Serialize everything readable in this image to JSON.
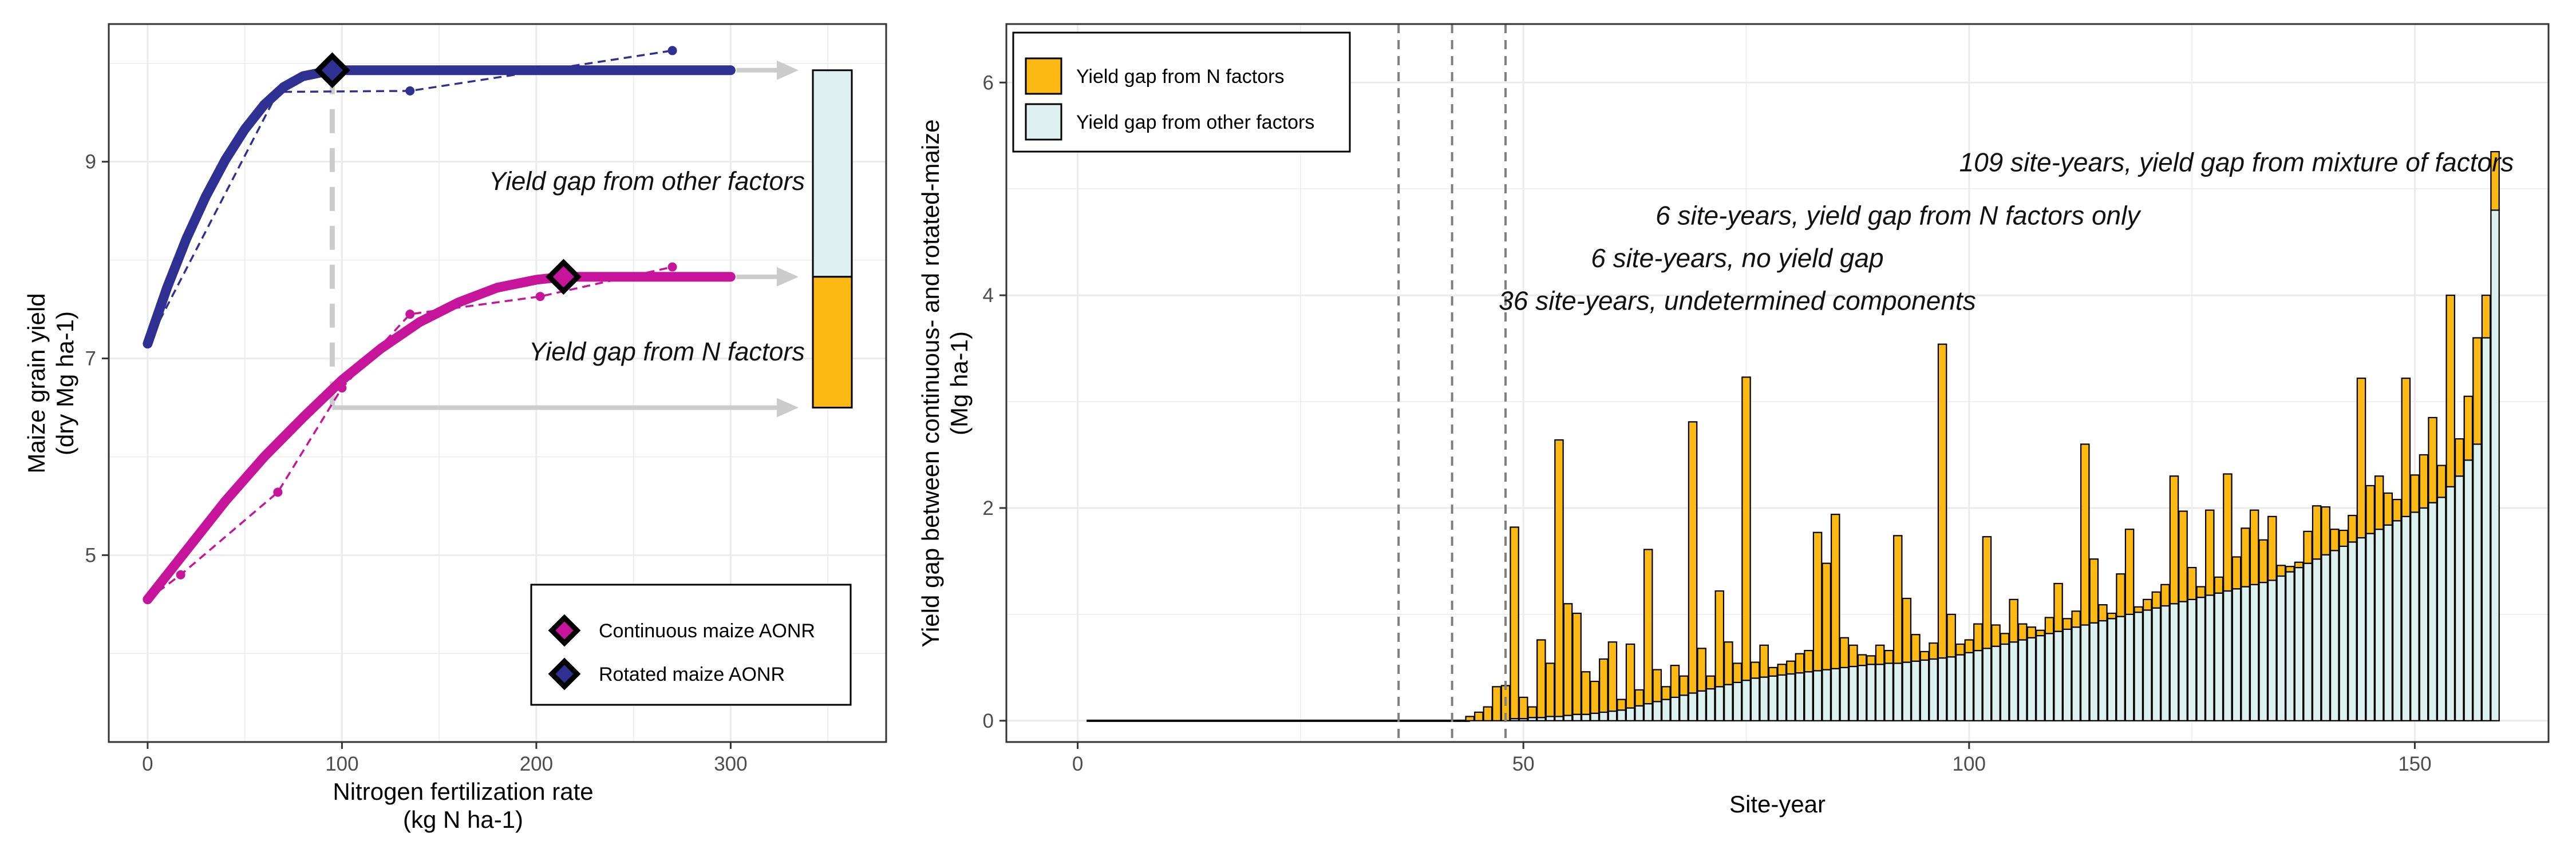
{
  "chart_data": [
    {
      "type": "line",
      "xlabel_lines": [
        "Nitrogen fertilization rate",
        "(kg N ha-1)"
      ],
      "ylabel_lines": [
        "Maize grain yield",
        "(dry Mg ha-1)"
      ],
      "xlim": [
        -20,
        380
      ],
      "ylim": [
        3.1,
        10.4
      ],
      "xticks": [
        0,
        100,
        200,
        300
      ],
      "yticks": [
        5,
        7,
        9
      ],
      "colors": {
        "rotated": "#2E3192",
        "continuous": "#C6159B",
        "n_factors": "#FDB913",
        "other_factors": "#DDF0F0",
        "arrow": "#CCCCCC"
      },
      "series": [
        {
          "key": "rotated",
          "fit": [
            [
              0,
              7.15
            ],
            [
              10,
              7.72
            ],
            [
              20,
              8.22
            ],
            [
              30,
              8.65
            ],
            [
              40,
              9.02
            ],
            [
              50,
              9.33
            ],
            [
              60,
              9.58
            ],
            [
              70,
              9.76
            ],
            [
              80,
              9.87
            ],
            [
              95,
              9.93
            ],
            [
              300,
              9.93
            ]
          ],
          "observed": [
            [
              0,
              7.15
            ],
            [
              67,
              9.71
            ],
            [
              135,
              9.72
            ],
            [
              270,
              10.13
            ]
          ]
        },
        {
          "key": "continuous",
          "fit": [
            [
              0,
              4.55
            ],
            [
              20,
              5.05
            ],
            [
              40,
              5.55
            ],
            [
              60,
              6.0
            ],
            [
              80,
              6.4
            ],
            [
              100,
              6.78
            ],
            [
              120,
              7.1
            ],
            [
              140,
              7.37
            ],
            [
              160,
              7.57
            ],
            [
              180,
              7.72
            ],
            [
              200,
              7.8
            ],
            [
              214,
              7.83
            ],
            [
              300,
              7.83
            ]
          ],
          "observed": [
            [
              0,
              4.55
            ],
            [
              17,
              4.8
            ],
            [
              67,
              5.64
            ],
            [
              100,
              6.7
            ],
            [
              135,
              7.45
            ],
            [
              202,
              7.63
            ],
            [
              270,
              7.93
            ]
          ]
        }
      ],
      "aonr": [
        {
          "key": "rotated",
          "x": 95,
          "y": 9.93
        },
        {
          "key": "continuous",
          "x": 214,
          "y": 7.83
        }
      ],
      "gap_bar": {
        "total_top": 9.93,
        "n_gap_top": 7.83,
        "bottom": 6.5
      },
      "annotations": {
        "other_factors": "Yield gap from other factors",
        "n_factors": "Yield gap from N factors"
      },
      "legend": {
        "position": "bottom-right",
        "items": [
          {
            "key": "continuous",
            "label": "Continuous maize AONR"
          },
          {
            "key": "rotated",
            "label": "Rotated maize AONR"
          }
        ]
      },
      "grid": true
    },
    {
      "type": "bar",
      "xlabel": "Site-year",
      "ylabel_lines": [
        "Yield gap between continuous- and rotated-maize",
        "(Mg ha-1)"
      ],
      "xlim": [
        -8,
        165
      ],
      "ylim": [
        -0.2,
        6.55
      ],
      "xticks": [
        0,
        50,
        100,
        150
      ],
      "yticks": [
        0,
        2,
        4,
        6
      ],
      "stacked": true,
      "series": [
        {
          "name": "Yield gap from N factors",
          "color": "#FDB913"
        },
        {
          "name": "Yield gap from other factors",
          "color": "#DDF0F0"
        }
      ],
      "bars_start_site": 44,
      "other_factors_values": [
        0,
        0,
        0,
        0,
        0,
        0.02,
        0.02,
        0.03,
        0.03,
        0.04,
        0.04,
        0.05,
        0.06,
        0.06,
        0.07,
        0.08,
        0.09,
        0.1,
        0.12,
        0.14,
        0.16,
        0.18,
        0.2,
        0.22,
        0.24,
        0.26,
        0.28,
        0.3,
        0.32,
        0.34,
        0.36,
        0.38,
        0.4,
        0.41,
        0.42,
        0.43,
        0.44,
        0.45,
        0.46,
        0.47,
        0.48,
        0.49,
        0.5,
        0.51,
        0.52,
        0.53,
        0.53,
        0.54,
        0.54,
        0.55,
        0.56,
        0.57,
        0.58,
        0.59,
        0.6,
        0.62,
        0.64,
        0.66,
        0.68,
        0.7,
        0.72,
        0.74,
        0.76,
        0.78,
        0.8,
        0.82,
        0.84,
        0.86,
        0.88,
        0.9,
        0.92,
        0.94,
        0.96,
        0.98,
        1.0,
        1.02,
        1.04,
        1.06,
        1.08,
        1.1,
        1.12,
        1.14,
        1.16,
        1.18,
        1.2,
        1.22,
        1.24,
        1.26,
        1.28,
        1.3,
        1.32,
        1.36,
        1.4,
        1.44,
        1.48,
        1.52,
        1.56,
        1.6,
        1.64,
        1.68,
        1.72,
        1.76,
        1.8,
        1.84,
        1.88,
        1.92,
        1.96,
        2.0,
        2.05,
        2.1,
        2.2,
        2.3,
        2.45,
        2.6,
        3.6,
        4.8
      ],
      "n_factors_values": [
        0.04,
        0.08,
        0.13,
        0.32,
        0.33,
        1.8,
        0.2,
        0.1,
        0.73,
        0.5,
        2.6,
        1.05,
        0.95,
        0.4,
        0.3,
        0.5,
        0.65,
        0.1,
        0.6,
        0.15,
        1.45,
        0.3,
        0.12,
        0.3,
        0.18,
        2.55,
        0.4,
        0.12,
        0.9,
        0.4,
        0.18,
        2.85,
        0.15,
        0.3,
        0.08,
        0.1,
        0.12,
        0.18,
        0.2,
        1.3,
        1.0,
        1.45,
        0.28,
        0.2,
        0.1,
        0.08,
        0.18,
        0.12,
        1.2,
        0.6,
        0.25,
        0.08,
        0.15,
        2.95,
        0.4,
        0.1,
        0.12,
        0.25,
        1.05,
        0.2,
        0.1,
        0.4,
        0.15,
        0.1,
        0.05,
        0.15,
        0.45,
        0.1,
        0.15,
        1.7,
        0.6,
        0.15,
        0.05,
        0.4,
        0.8,
        0.05,
        0.1,
        0.15,
        0.2,
        1.2,
        0.85,
        0.3,
        0.1,
        0.8,
        0.15,
        1.1,
        0.3,
        0.55,
        0.7,
        0.4,
        0.6,
        0.1,
        0.05,
        0.05,
        0.3,
        0.5,
        0.45,
        0.2,
        0.15,
        0.25,
        1.5,
        0.45,
        0.5,
        0.3,
        0.2,
        1.3,
        0.35,
        0.5,
        0.8,
        0.3,
        1.8,
        0.35,
        0.6,
        1.0,
        0.4,
        0.55
      ],
      "vlines": [
        36,
        42,
        48
      ],
      "annotations": [
        {
          "text": "109 site-years, yield gap from mixture of factors",
          "x": 130,
          "y": 5.25
        },
        {
          "text": "6 site-years, yield gap from N factors only",
          "x": 92,
          "y": 4.75
        },
        {
          "text": "6 site-years, no yield gap",
          "x": 74,
          "y": 4.35
        },
        {
          "text": "36 site-years, undetermined components",
          "x": 74,
          "y": 3.95
        }
      ],
      "legend": {
        "position": "top-left"
      },
      "grid": true
    }
  ]
}
